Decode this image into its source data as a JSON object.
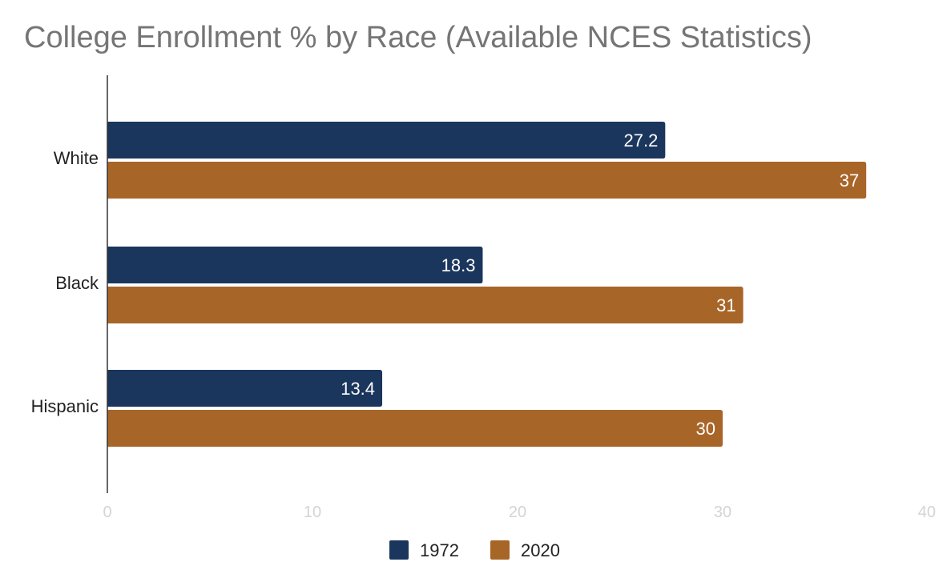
{
  "chart_data": {
    "type": "bar",
    "orientation": "horizontal",
    "title": "College Enrollment % by Race (Available NCES Statistics)",
    "categories": [
      "White",
      "Black",
      "Hispanic"
    ],
    "series": [
      {
        "name": "1972",
        "values": [
          27.2,
          18.3,
          13.4
        ],
        "labels": [
          "27.2",
          "18.3",
          "13.4"
        ],
        "color": "#1b365d"
      },
      {
        "name": "2020",
        "values": [
          37,
          31,
          30
        ],
        "labels": [
          "37",
          "31",
          "30"
        ],
        "color": "#a86528"
      }
    ],
    "xlim": [
      0,
      40
    ],
    "xticks": [
      0,
      10,
      20,
      30,
      40
    ],
    "xlabel": "",
    "ylabel": "",
    "grid": false,
    "legend_position": "bottom"
  }
}
